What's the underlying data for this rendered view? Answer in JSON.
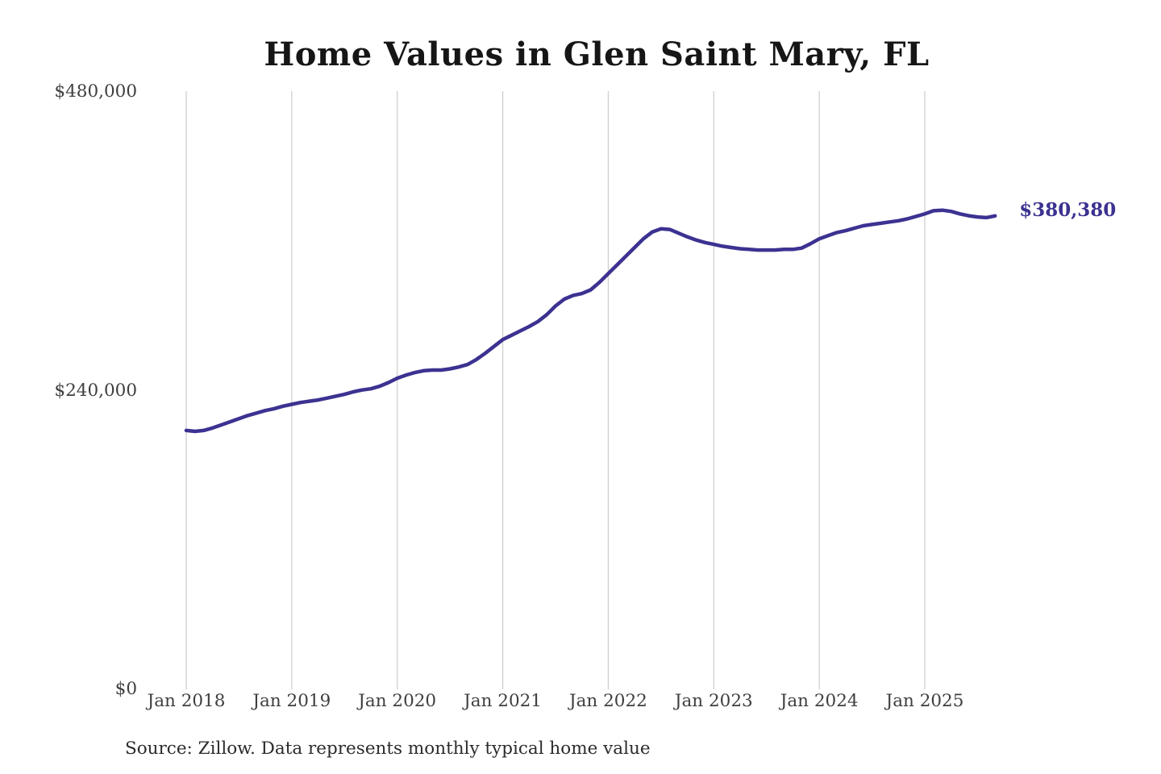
{
  "title": "Home Values in Glen Saint Mary, FL",
  "source_note": "Source: Zillow. Data represents monthly typical home value",
  "chart_data": {
    "type": "line",
    "title": "Home Values in Glen Saint Mary, FL",
    "frequency": "monthly",
    "x_start": "Jan 2018",
    "x_end": "Sep 2025",
    "ylabel": "",
    "xlabel": "",
    "ylim": [
      0,
      480000
    ],
    "grid": "vertical-only",
    "legend": "none",
    "end_label": "$380,380",
    "end_value": 380380,
    "y_ticks": [
      {
        "label": "$480,000",
        "value": 480000
      },
      {
        "label": "$240,000",
        "value": 240000
      },
      {
        "label": "$0",
        "value": 0
      }
    ],
    "x_ticks": [
      {
        "label": "Jan 2018",
        "index": 0
      },
      {
        "label": "Jan 2019",
        "index": 12
      },
      {
        "label": "Jan 2020",
        "index": 24
      },
      {
        "label": "Jan 2021",
        "index": 36
      },
      {
        "label": "Jan 2022",
        "index": 48
      },
      {
        "label": "Jan 2023",
        "index": 60
      },
      {
        "label": "Jan 2024",
        "index": 72
      },
      {
        "label": "Jan 2025",
        "index": 84
      }
    ],
    "series": [
      {
        "name": "Typical home value",
        "values": [
          208000,
          207300,
          208000,
          210000,
          212500,
          215000,
          217500,
          220000,
          222000,
          224000,
          225500,
          227500,
          229000,
          230500,
          231500,
          232500,
          234000,
          235500,
          237000,
          239000,
          240500,
          241500,
          243500,
          246500,
          250000,
          252500,
          254500,
          256000,
          256500,
          256500,
          257500,
          259000,
          261000,
          265000,
          270000,
          275500,
          281000,
          284500,
          288000,
          291500,
          295500,
          301000,
          308000,
          313500,
          316500,
          318000,
          321000,
          327000,
          334000,
          341000,
          348000,
          355000,
          362000,
          367500,
          370000,
          369500,
          366500,
          363500,
          361000,
          359000,
          357500,
          356000,
          355000,
          354000,
          353500,
          353000,
          353000,
          353000,
          353500,
          353500,
          354500,
          358000,
          362000,
          364500,
          367000,
          368500,
          370500,
          372500,
          373500,
          374500,
          375500,
          376500,
          378000,
          380000,
          382000,
          384500,
          385000,
          384000,
          382000,
          380500,
          379500,
          379000,
          380380
        ]
      }
    ],
    "colors": {
      "line": "#3b3291",
      "end_label": "#3b3291",
      "grid": "#cccccc",
      "title": "#161616",
      "ticks": "#3f3f3f",
      "source": "#2b2b2b",
      "background": "#ffffff"
    }
  }
}
